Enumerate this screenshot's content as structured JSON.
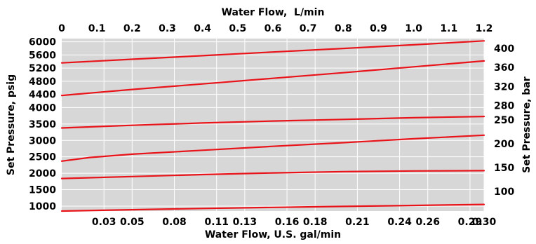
{
  "chart_data": {
    "type": "line",
    "title": "",
    "x_axis_bottom": {
      "label": "Water Flow, U.S. gal/min",
      "range": [
        0,
        0.3
      ],
      "ticks": [
        {
          "value": 0.03,
          "label": "0.03"
        },
        {
          "value": 0.05,
          "label": "0.05"
        },
        {
          "value": 0.08,
          "label": "0.08"
        },
        {
          "value": 0.11,
          "label": "0.11"
        },
        {
          "value": 0.13,
          "label": "0.13"
        },
        {
          "value": 0.16,
          "label": "0.16"
        },
        {
          "value": 0.18,
          "label": "0.18"
        },
        {
          "value": 0.21,
          "label": "0.21"
        },
        {
          "value": 0.24,
          "label": "0.24"
        },
        {
          "value": 0.26,
          "label": "0.26"
        },
        {
          "value": 0.29,
          "label": "0.29"
        },
        {
          "value": 0.3,
          "label": "0.30"
        }
      ]
    },
    "x_axis_top": {
      "label": "Water Flow,  L/min",
      "range": [
        0,
        1.2
      ],
      "ticks": [
        {
          "value": 0,
          "label": "0"
        },
        {
          "value": 0.1,
          "label": "0.1"
        },
        {
          "value": 0.2,
          "label": "0.2"
        },
        {
          "value": 0.3,
          "label": "0.3"
        },
        {
          "value": 0.4,
          "label": "0.4"
        },
        {
          "value": 0.5,
          "label": "0.5"
        },
        {
          "value": 0.6,
          "label": "0.6"
        },
        {
          "value": 0.7,
          "label": "0.7"
        },
        {
          "value": 0.8,
          "label": "0.8"
        },
        {
          "value": 0.9,
          "label": "0.9"
        },
        {
          "value": 1.0,
          "label": "1.0"
        },
        {
          "value": 1.1,
          "label": "1.1"
        },
        {
          "value": 1.2,
          "label": "1.2"
        }
      ]
    },
    "y_axis_left": {
      "label": "Set Pressure, psig",
      "range": [
        850,
        6100
      ],
      "ticks": [
        {
          "value": 6000,
          "label": "6000"
        },
        {
          "value": 5600,
          "label": "5600"
        },
        {
          "value": 5200,
          "label": "5200"
        },
        {
          "value": 4800,
          "label": "4800"
        },
        {
          "value": 4400,
          "label": "4400"
        },
        {
          "value": 4000,
          "label": "4000"
        },
        {
          "value": 3500,
          "label": "3500"
        },
        {
          "value": 3000,
          "label": "3000"
        },
        {
          "value": 2500,
          "label": "2500"
        },
        {
          "value": 2000,
          "label": "2000"
        },
        {
          "value": 1500,
          "label": "1500"
        },
        {
          "value": 1000,
          "label": "1000"
        }
      ]
    },
    "y_axis_right": {
      "label": "Set Pressure, bar",
      "range": [
        58.6,
        420.6
      ],
      "ticks": [
        {
          "value": 400,
          "label": "400"
        },
        {
          "value": 360,
          "label": "360"
        },
        {
          "value": 320,
          "label": "320"
        },
        {
          "value": 280,
          "label": "280"
        },
        {
          "value": 250,
          "label": "250"
        },
        {
          "value": 200,
          "label": "200"
        },
        {
          "value": 150,
          "label": "150"
        },
        {
          "value": 100,
          "label": "100"
        }
      ]
    },
    "grid": true,
    "legend": "none",
    "colors": {
      "plot_background": "#d7d7d7",
      "grid": "#ffffff",
      "series": "#e8141a"
    },
    "series": [
      {
        "x": [
          0,
          0.05,
          0.1,
          0.15,
          0.2,
          0.25,
          0.3
        ],
        "y": [
          5360,
          5470,
          5580,
          5690,
          5800,
          5910,
          6030
        ]
      },
      {
        "x": [
          0,
          0.05,
          0.1,
          0.15,
          0.2,
          0.25,
          0.3
        ],
        "y": [
          4370,
          4550,
          4720,
          4890,
          5060,
          5240,
          5420
        ]
      },
      {
        "x": [
          0,
          0.05,
          0.1,
          0.15,
          0.2,
          0.25,
          0.3
        ],
        "y": [
          3380,
          3460,
          3530,
          3590,
          3640,
          3690,
          3730
        ]
      },
      {
        "x": [
          0,
          0.02,
          0.05,
          0.1,
          0.15,
          0.2,
          0.25,
          0.3
        ],
        "y": [
          2370,
          2480,
          2580,
          2700,
          2820,
          2930,
          3050,
          3160
        ]
      },
      {
        "x": [
          0,
          0.05,
          0.1,
          0.15,
          0.2,
          0.25,
          0.3
        ],
        "y": [
          1840,
          1900,
          1960,
          2010,
          2050,
          2070,
          2080
        ]
      },
      {
        "x": [
          0,
          0.05,
          0.1,
          0.15,
          0.2,
          0.25,
          0.3
        ],
        "y": [
          850,
          890,
          930,
          960,
          990,
          1020,
          1050
        ]
      }
    ]
  }
}
